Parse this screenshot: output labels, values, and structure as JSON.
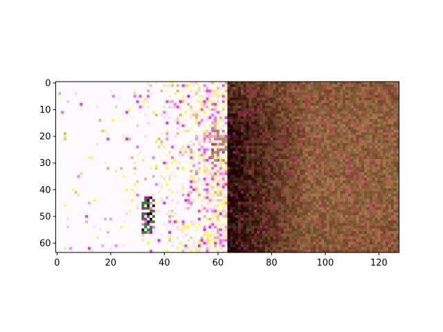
{
  "chart_data": {
    "type": "heatmap",
    "title": "",
    "xlabel": "",
    "ylabel": "",
    "image_width": 128,
    "image_height": 64,
    "xlim": [
      -0.5,
      127.5
    ],
    "ylim": [
      63.5,
      -0.5
    ],
    "x_ticks": [
      0,
      20,
      40,
      60,
      80,
      100,
      120
    ],
    "y_ticks": [
      0,
      10,
      20,
      30,
      40,
      50,
      60
    ],
    "x_tick_labels": [
      "0",
      "20",
      "40",
      "60",
      "80",
      "100",
      "120"
    ],
    "y_tick_labels": [
      "0",
      "10",
      "20",
      "30",
      "40",
      "50",
      "60"
    ],
    "grid": false,
    "left_panel": {
      "x_range": [
        0,
        63
      ],
      "background_color": "#fdfafd",
      "noise_colors": [
        "#ffff00",
        "#ff00ff",
        "#ffd0ff",
        "#f5e6a0",
        "#d8b070"
      ],
      "dark_streak": {
        "x_range": [
          55,
          63
        ],
        "y_range": [
          18,
          62
        ]
      },
      "figure_blob": {
        "x_range": [
          32,
          36
        ],
        "y_range": [
          43,
          56
        ]
      }
    },
    "right_panel": {
      "x_range": [
        64,
        127
      ],
      "base_color": "#8a5a38",
      "dark_color": "#2a0806",
      "light_color": "#a07850",
      "dark_region": {
        "x_range": [
          64,
          85
        ],
        "y_range": [
          15,
          63
        ]
      }
    }
  }
}
